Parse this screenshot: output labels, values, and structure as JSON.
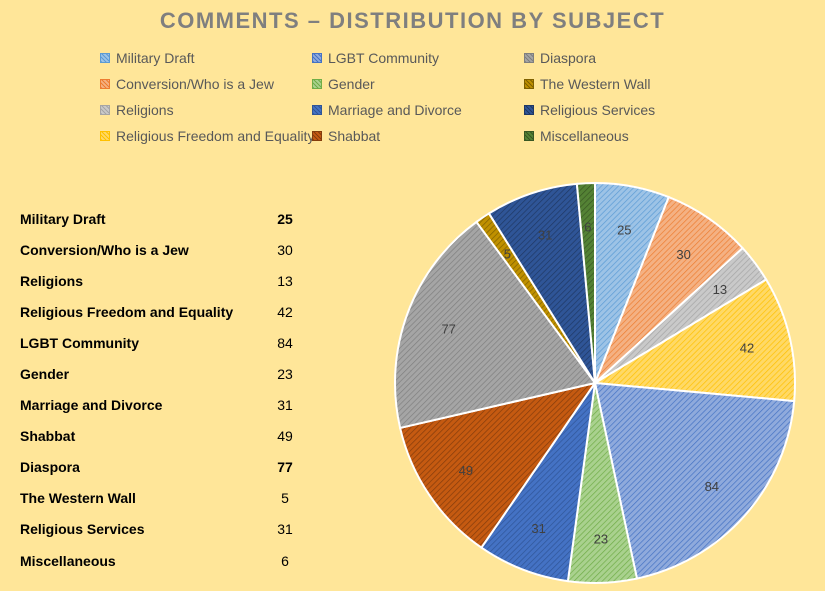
{
  "title": "COMMENTS – DISTRIBUTION BY SUBJECT",
  "chart_data": {
    "type": "pie",
    "title": "COMMENTS – DISTRIBUTION BY SUBJECT",
    "legend_position": "top",
    "categories": [
      "Military Draft",
      "Conversion/Who is a Jew",
      "Religions",
      "Religious Freedom and Equality",
      "LGBT Community",
      "Gender",
      "Marriage and Divorce",
      "Shabbat",
      "Diaspora",
      "The Western Wall",
      "Religious Services",
      "Miscellaneous"
    ],
    "values": [
      25,
      30,
      13,
      42,
      84,
      23,
      31,
      49,
      77,
      5,
      31,
      6
    ],
    "colors": [
      "#9DC3E6",
      "#F4B183",
      "#C9C9C9",
      "#FFD966",
      "#8FAADC",
      "#A9D18E",
      "#4472C4",
      "#C55A11",
      "#A5A5A5",
      "#BF9000",
      "#2F5597",
      "#548235"
    ],
    "stroke_colors": [
      "#5B9BD5",
      "#ED7D31",
      "#A5A5A5",
      "#FFC000",
      "#4472C4",
      "#70AD47",
      "#2F5597",
      "#843C0C",
      "#7F7F7F",
      "#7F6000",
      "#1F3864",
      "#385723"
    ]
  },
  "table": [
    {
      "category": "Military Draft",
      "value": "25",
      "bold": true
    },
    {
      "category": "Conversion/Who is a Jew",
      "value": "30",
      "bold": false
    },
    {
      "category": "Religions",
      "value": "13",
      "bold": false
    },
    {
      "category": "Religious Freedom and Equality",
      "value": "42",
      "bold": false
    },
    {
      "category": "LGBT Community",
      "value": "84",
      "bold": false
    },
    {
      "category": "Gender",
      "value": "23",
      "bold": false
    },
    {
      "category": "Marriage and Divorce",
      "value": "31",
      "bold": false
    },
    {
      "category": "Shabbat",
      "value": "49",
      "bold": false
    },
    {
      "category": "Diaspora",
      "value": "77",
      "bold": true
    },
    {
      "category": "The Western Wall",
      "value": "5",
      "bold": false
    },
    {
      "category": "Religious Services",
      "value": "31",
      "bold": false
    },
    {
      "category": "Miscellaneous",
      "value": "6",
      "bold": false
    }
  ]
}
